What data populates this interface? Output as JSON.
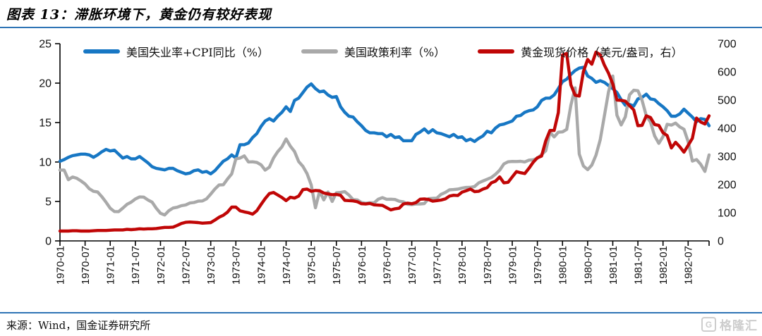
{
  "header": {
    "title": "图表 13：滞胀环境下，黄金仍有较好表现"
  },
  "footer": {
    "source": "来源：Wind，国金证券研究所",
    "watermark": "格隆汇",
    "watermark_icon": "G"
  },
  "colors": {
    "accent_rule": "#2E74B5",
    "blue": "#1777C4",
    "gray": "#A9A9A9",
    "red": "#C00606",
    "axis": "#000000",
    "watermark": "#CDCDCD"
  },
  "chart_data": {
    "type": "line",
    "x_frequency": "monthly",
    "x_start": "1970-01",
    "x_end": "1982-12",
    "x_tick_labels": [
      "1970-01",
      "1970-07",
      "1971-01",
      "1971-07",
      "1972-01",
      "1972-07",
      "1973-01",
      "1973-07",
      "1974-01",
      "1974-07",
      "1975-01",
      "1975-07",
      "1976-01",
      "1976-07",
      "1977-01",
      "1977-07",
      "1978-01",
      "1978-07",
      "1979-01",
      "1979-07",
      "1980-01",
      "1980-07",
      "1981-01",
      "1981-07",
      "1982-01",
      "1982-07"
    ],
    "left_axis": {
      "min": 0,
      "max": 25,
      "ticks": [
        "0",
        "5",
        "10",
        "15",
        "20",
        "25"
      ]
    },
    "right_axis": {
      "min": 0,
      "max": 700,
      "ticks": [
        "0",
        "100",
        "200",
        "300",
        "400",
        "500",
        "600",
        "700"
      ]
    },
    "grid": false,
    "legend_position": "top",
    "series": [
      {
        "id": "unemployment_cpi",
        "name": "美国失业率+CPI同比（%）",
        "axis": "left",
        "color": "#1777C4",
        "values": [
          10.1,
          10.3,
          10.6,
          10.8,
          10.9,
          11.0,
          11.0,
          10.9,
          10.6,
          10.9,
          11.3,
          11.6,
          11.4,
          11.5,
          11.0,
          10.5,
          10.7,
          10.4,
          10.4,
          10.7,
          10.3,
          9.9,
          9.4,
          9.2,
          9.1,
          9.0,
          9.2,
          9.2,
          8.9,
          8.7,
          8.5,
          8.6,
          8.9,
          9.0,
          8.7,
          8.8,
          8.5,
          8.9,
          9.5,
          10.1,
          10.4,
          10.9,
          10.5,
          12.2,
          12.2,
          12.4,
          13.1,
          13.6,
          14.5,
          15.2,
          15.5,
          15.2,
          15.8,
          16.3,
          17.0,
          16.4,
          17.8,
          18.1,
          18.8,
          19.5,
          19.9,
          19.3,
          18.9,
          19.0,
          18.5,
          18.2,
          18.3,
          17.0,
          16.3,
          15.8,
          15.7,
          15.1,
          14.6,
          14.0,
          13.7,
          13.7,
          13.6,
          13.6,
          13.2,
          13.5,
          13.1,
          13.2,
          12.7,
          12.7,
          12.7,
          13.5,
          13.8,
          14.2,
          13.7,
          14.1,
          13.7,
          13.6,
          13.4,
          13.2,
          13.5,
          13.1,
          13.2,
          12.7,
          12.9,
          12.6,
          13.0,
          13.3,
          13.9,
          13.7,
          14.3,
          14.7,
          14.8,
          15.0,
          15.2,
          15.8,
          15.9,
          16.3,
          16.5,
          16.6,
          17.0,
          17.8,
          18.1,
          18.1,
          18.5,
          19.3,
          20.2,
          20.5,
          21.1,
          21.6,
          21.9,
          22.0,
          20.9,
          20.6,
          20.1,
          20.3,
          20.1,
          19.7,
          19.3,
          18.8,
          17.9,
          17.2,
          17.3,
          17.1,
          18.0,
          18.2,
          18.6,
          18.0,
          17.9,
          17.4,
          17.0,
          16.5,
          15.8,
          15.8,
          16.1,
          16.7,
          16.2,
          15.7,
          15.1,
          15.5,
          15.4,
          14.6
        ]
      },
      {
        "id": "policy_rate",
        "name": "美国政策利率（%）",
        "axis": "left",
        "color": "#A9A9A9",
        "values": [
          8.98,
          8.98,
          7.76,
          8.1,
          7.95,
          7.61,
          7.21,
          6.62,
          6.29,
          6.2,
          5.6,
          4.9,
          4.14,
          3.72,
          3.71,
          4.15,
          4.63,
          4.91,
          5.31,
          5.57,
          5.55,
          5.2,
          4.91,
          4.14,
          3.5,
          3.29,
          3.83,
          4.17,
          4.27,
          4.46,
          4.55,
          4.8,
          4.87,
          5.04,
          5.06,
          5.33,
          5.94,
          6.58,
          7.09,
          7.12,
          7.84,
          8.49,
          10.4,
          10.5,
          10.78,
          10.01,
          10.03,
          9.95,
          9.65,
          8.97,
          9.35,
          10.51,
          11.31,
          11.93,
          12.92,
          12.01,
          11.34,
          10.06,
          9.45,
          8.53,
          7.1,
          4.2,
          6.3,
          5.2,
          6.2,
          5.0,
          6.1,
          6.14,
          6.24,
          5.82,
          5.22,
          5.2,
          4.87,
          4.77,
          4.84,
          4.82,
          5.29,
          5.48,
          5.28,
          5.29,
          5.25,
          5.03,
          4.95,
          4.65,
          4.61,
          4.68,
          4.69,
          4.73,
          5.35,
          5.39,
          5.42,
          5.9,
          6.14,
          6.47,
          6.51,
          6.56,
          6.7,
          6.78,
          6.79,
          6.89,
          7.36,
          7.6,
          7.81,
          8.04,
          8.45,
          8.96,
          9.76,
          10.03,
          10.07,
          10.06,
          10.09,
          10.01,
          10.24,
          10.29,
          10.47,
          10.94,
          11.43,
          13.77,
          13.18,
          13.78,
          13.82,
          14.13,
          17.19,
          19.4,
          11.0,
          9.5,
          9.03,
          9.61,
          10.87,
          12.81,
          15.85,
          18.9,
          20.9,
          15.93,
          14.7,
          15.72,
          18.52,
          19.1,
          19.04,
          17.82,
          15.87,
          15.08,
          13.31,
          12.37,
          13.22,
          14.78,
          14.68,
          14.94,
          14.45,
          14.15,
          12.59,
          10.12,
          10.31,
          9.71,
          8.8,
          10.9
        ]
      },
      {
        "id": "gold_price",
        "name": "黄金现货价格（美元/盎司，右）",
        "axis": "right",
        "color": "#C00606",
        "values": [
          35,
          35,
          35,
          36,
          36,
          35,
          35,
          35,
          36,
          37,
          37,
          37,
          38,
          39,
          39,
          39,
          41,
          40,
          41,
          43,
          42,
          43,
          43,
          44,
          46,
          48,
          48,
          49,
          55,
          62,
          66,
          67,
          66,
          65,
          63,
          64,
          65,
          74,
          84,
          91,
          102,
          120,
          120,
          107,
          103,
          100,
          95,
          107,
          129,
          150,
          168,
          172,
          163,
          154,
          143,
          155,
          152,
          159,
          182,
          184,
          176,
          179,
          178,
          170,
          167,
          164,
          165,
          162,
          144,
          143,
          142,
          139,
          132,
          131,
          133,
          128,
          127,
          126,
          118,
          110,
          114,
          116,
          131,
          134,
          132,
          136,
          148,
          149,
          147,
          141,
          143,
          145,
          149,
          159,
          162,
          161,
          173,
          178,
          184,
          175,
          176,
          184,
          189,
          206,
          212,
          227,
          206,
          208,
          227,
          246,
          242,
          239,
          258,
          279,
          295,
          301,
          355,
          392,
          392,
          455,
          660,
          665,
          554,
          517,
          514,
          601,
          644,
          627,
          670,
          661,
          624,
          595,
          557,
          500,
          499,
          496,
          480,
          465,
          409,
          410,
          444,
          438,
          413,
          410,
          384,
          374,
          330,
          350,
          334,
          315,
          339,
          364,
          436,
          422,
          415,
          444
        ]
      }
    ]
  }
}
